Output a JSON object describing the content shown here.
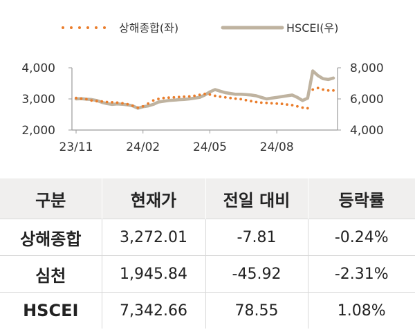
{
  "chart_data": {
    "type": "line",
    "legend_position": "top",
    "x_tick_labels": [
      "23/11",
      "24/02",
      "24/05",
      "24/08"
    ],
    "x_ticks_index": [
      0,
      13,
      26,
      39
    ],
    "left_axis": {
      "ylim": [
        2000,
        4000
      ],
      "ticks": [
        "2,000",
        "3,000",
        "4,000"
      ],
      "tick_values": [
        2000,
        3000,
        4000
      ]
    },
    "right_axis": {
      "ylim": [
        4000,
        8000
      ],
      "ticks": [
        "4,000",
        "6,000",
        "8,000"
      ],
      "tick_values": [
        4000,
        6000,
        8000
      ]
    },
    "series": [
      {
        "name": "상해종합(좌)",
        "axis": "left",
        "style": "dotted",
        "color": "#ea7d2b",
        "values": [
          3030,
          3010,
          2990,
          2950,
          2930,
          2920,
          2900,
          2890,
          2880,
          2860,
          2830,
          2780,
          2720,
          2760,
          2850,
          2950,
          3000,
          3030,
          3040,
          3050,
          3060,
          3070,
          3080,
          3100,
          3130,
          3160,
          3140,
          3100,
          3070,
          3050,
          3030,
          3010,
          2990,
          2960,
          2930,
          2900,
          2880,
          2870,
          2860,
          2850,
          2840,
          2820,
          2800,
          2760,
          2720,
          2700,
          3300,
          3350,
          3300,
          3270,
          3272
        ]
      },
      {
        "name": "HSCEI(우)",
        "axis": "right",
        "style": "solid",
        "color": "#bfb3a0",
        "values": [
          6000,
          6020,
          5980,
          5960,
          5900,
          5780,
          5700,
          5650,
          5680,
          5660,
          5620,
          5550,
          5400,
          5500,
          5550,
          5650,
          5800,
          5850,
          5900,
          5920,
          5950,
          5970,
          6000,
          6050,
          6100,
          6250,
          6450,
          6600,
          6500,
          6400,
          6350,
          6300,
          6300,
          6280,
          6250,
          6200,
          6100,
          6000,
          6050,
          6100,
          6150,
          6200,
          6250,
          6100,
          5900,
          6050,
          7800,
          7500,
          7300,
          7250,
          7342
        ]
      }
    ]
  },
  "table": {
    "headers": [
      "구분",
      "현재가",
      "전일 대비",
      "등락률"
    ],
    "rows": [
      [
        "상해종합",
        "3,272.01",
        "-7.81",
        "-0.24%"
      ],
      [
        "심천",
        "1,945.84",
        "-45.92",
        "-2.31%"
      ],
      [
        "HSCEI",
        "7,342.66",
        "78.55",
        "1.08%"
      ]
    ]
  }
}
